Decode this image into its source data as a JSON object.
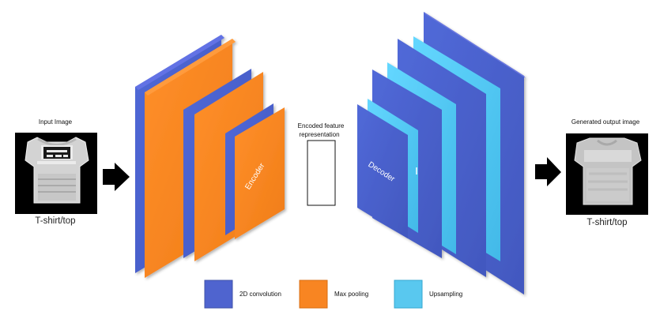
{
  "input": {
    "title": "Input Image",
    "caption": "T-shirt/top"
  },
  "encoded": {
    "label_line1": "Encoded feature",
    "label_line2": "representation"
  },
  "output": {
    "title": "Generated output image",
    "caption": "T-shirt/top"
  },
  "blocks": {
    "encoder_label": "Encoder",
    "decoder_label": "Decoder"
  },
  "legend": {
    "items": [
      {
        "label": "2D convolution",
        "color": "#4f64cf"
      },
      {
        "label": "Max pooling",
        "color": "#f88522"
      },
      {
        "label": "Upsampling",
        "color": "#59c8ef"
      }
    ]
  },
  "colors": {
    "convolution": "#4f64cf",
    "max_pooling": "#f88522",
    "upsampling": "#59c8ef",
    "arrow": "#000000",
    "image_background": "#000000"
  },
  "icons": {
    "left_arrow": "right-arrow-icon",
    "right_arrow": "right-arrow-icon"
  }
}
